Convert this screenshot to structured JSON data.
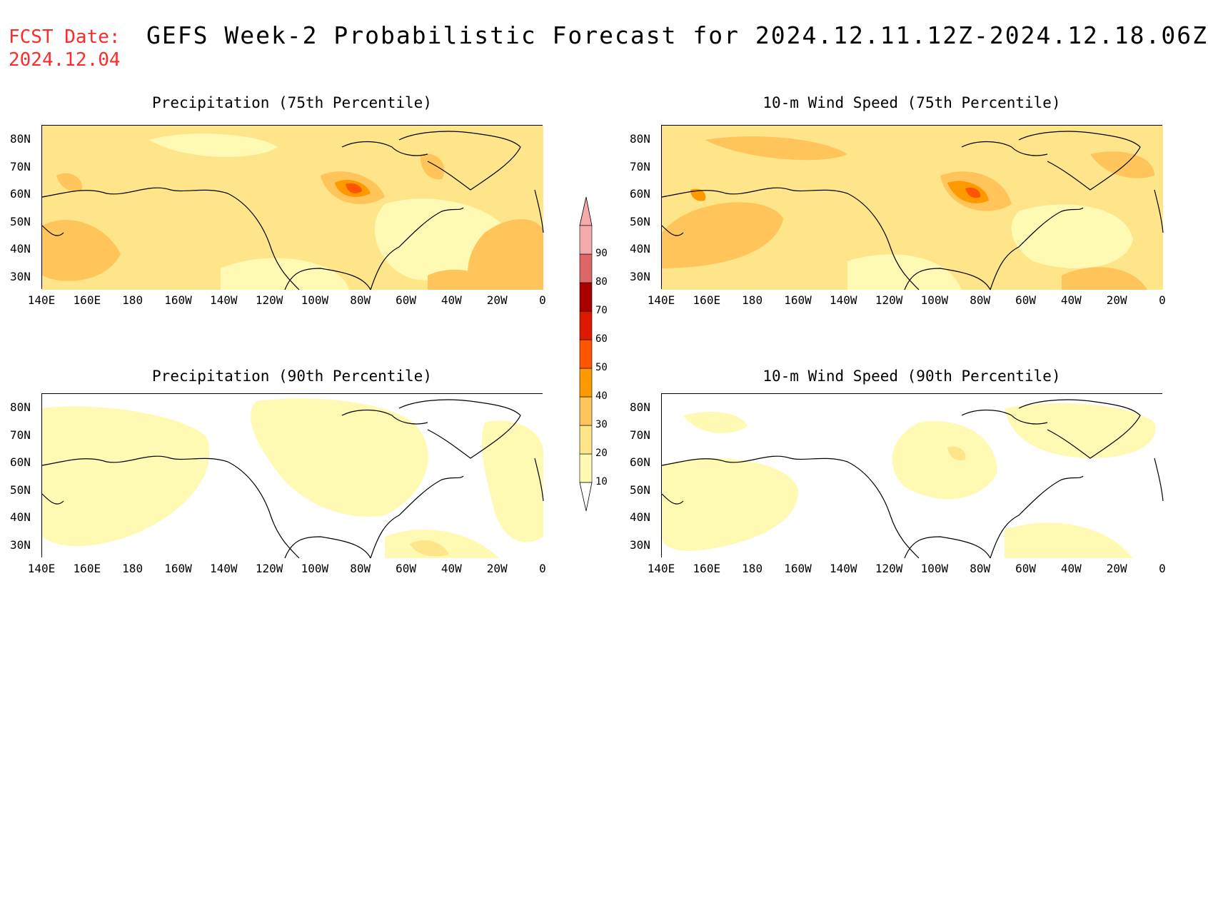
{
  "header": {
    "fcst_label": "FCST Date:",
    "fcst_date": "2024.12.04",
    "title": "GEFS Week-2 Probabilistic Forecast for 2024.12.11.12Z-2024.12.18.06Z"
  },
  "axes": {
    "lat_labels": [
      "80N",
      "70N",
      "60N",
      "50N",
      "40N",
      "30N"
    ],
    "lon_labels": [
      "140E",
      "160E",
      "180",
      "160W",
      "140W",
      "120W",
      "100W",
      "80W",
      "60W",
      "40W",
      "20W",
      "0"
    ]
  },
  "panels": [
    {
      "title": "Precipitation (75th Percentile)",
      "intensity": "high"
    },
    {
      "title": "10-m Wind Speed (75th Percentile)",
      "intensity": "high"
    },
    {
      "title": "Precipitation (90th Percentile)",
      "intensity": "low"
    },
    {
      "title": "10-m Wind Speed (90th Percentile)",
      "intensity": "low"
    }
  ],
  "colorbar": {
    "levels": [
      "10",
      "20",
      "30",
      "40",
      "50",
      "60",
      "70",
      "80",
      "90"
    ],
    "colors": [
      "#fffab3",
      "#ffe58a",
      "#ffc55a",
      "#ff9900",
      "#ff5500",
      "#dd1a00",
      "#aa0000",
      "#dd6666",
      "#f4aaaa"
    ]
  }
}
